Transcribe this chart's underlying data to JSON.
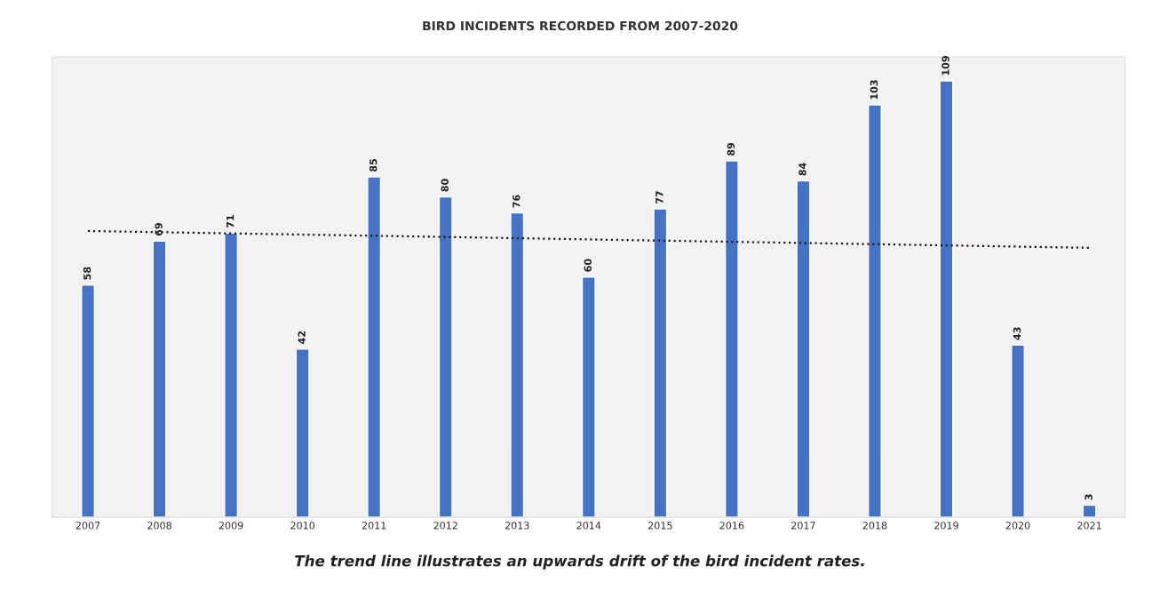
{
  "chart_data": {
    "type": "bar",
    "title": "BIRD INCIDENTS RECORDED FROM 2007-2020",
    "categories": [
      "2007",
      "2008",
      "2009",
      "2010",
      "2011",
      "2012",
      "2013",
      "2014",
      "2015",
      "2016",
      "2017",
      "2018",
      "2019",
      "2020",
      "2021"
    ],
    "series": [
      {
        "color": "#4472c4",
        "values": [
          58,
          69,
          71,
          42,
          85,
          80,
          76,
          60,
          77,
          89,
          84,
          103,
          109,
          43,
          3
        ],
        "value_labels": [
          "58",
          "69",
          "71",
          "42",
          "85",
          "80",
          "76",
          "60",
          "77",
          "89",
          "84",
          "103",
          "109",
          "43",
          "3"
        ]
      },
      {
        "type": "line",
        "color": "#1a1a1a",
        "line_style": "dotted",
        "values": [
          71.5,
          71.2,
          70.9,
          70.6,
          70.3,
          70.0,
          69.7,
          69.4,
          69.1,
          68.8,
          68.5,
          68.2,
          67.9,
          67.6,
          67.3
        ]
      }
    ],
    "ylim": [
      0,
      115
    ],
    "tick_labels": "x",
    "annotations": [
      "The trend line illustrates an upwards drift of the bird incident rates."
    ]
  }
}
